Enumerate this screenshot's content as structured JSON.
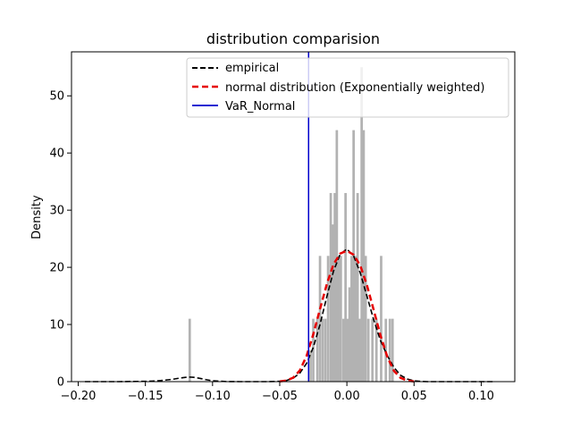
{
  "chart_data": {
    "type": "bar",
    "title": "distribution comparision",
    "xlabel": "",
    "ylabel": "Density",
    "xlim": [
      -0.205,
      0.125
    ],
    "ylim": [
      0,
      57.7
    ],
    "xticks": [
      -0.2,
      -0.15,
      -0.1,
      -0.05,
      0.0,
      0.05,
      0.1
    ],
    "xtick_labels": [
      "−0.20",
      "−0.15",
      "−0.10",
      "−0.05",
      "0.00",
      "0.05",
      "0.10"
    ],
    "yticks": [
      0,
      10,
      20,
      30,
      40,
      50
    ],
    "ytick_labels": [
      "0",
      "10",
      "20",
      "30",
      "40",
      "50"
    ],
    "grid": false,
    "legend_position": "top-right",
    "histogram": {
      "color": "#b2b2b2",
      "bin_width": 0.0018,
      "bins": [
        {
          "x": -0.117,
          "density": 11.0
        },
        {
          "x": -0.027,
          "density": 5.5
        },
        {
          "x": -0.025,
          "density": 11.0
        },
        {
          "x": -0.022,
          "density": 11.0
        },
        {
          "x": -0.02,
          "density": 22.0
        },
        {
          "x": -0.018,
          "density": 11.0
        },
        {
          "x": -0.016,
          "density": 11.0
        },
        {
          "x": -0.014,
          "density": 22.0
        },
        {
          "x": -0.012,
          "density": 33.0
        },
        {
          "x": -0.0105,
          "density": 27.5
        },
        {
          "x": -0.009,
          "density": 33.0
        },
        {
          "x": -0.0075,
          "density": 44.0
        },
        {
          "x": -0.006,
          "density": 22.0
        },
        {
          "x": -0.0045,
          "density": 22.0
        },
        {
          "x": -0.0025,
          "density": 11.0
        },
        {
          "x": -0.001,
          "density": 33.0
        },
        {
          "x": 0.0005,
          "density": 11.0
        },
        {
          "x": 0.002,
          "density": 16.5
        },
        {
          "x": 0.0035,
          "density": 22.0
        },
        {
          "x": 0.005,
          "density": 44.0
        },
        {
          "x": 0.0065,
          "density": 22.0
        },
        {
          "x": 0.008,
          "density": 33.0
        },
        {
          "x": 0.0095,
          "density": 11.0
        },
        {
          "x": 0.011,
          "density": 55.0
        },
        {
          "x": 0.0125,
          "density": 44.0
        },
        {
          "x": 0.014,
          "density": 22.0
        },
        {
          "x": 0.016,
          "density": 11.0
        },
        {
          "x": 0.019,
          "density": 11.0
        },
        {
          "x": 0.022,
          "density": 11.0
        },
        {
          "x": 0.0255,
          "density": 22.0
        },
        {
          "x": 0.029,
          "density": 11.0
        },
        {
          "x": 0.032,
          "density": 11.0
        },
        {
          "x": 0.034,
          "density": 11.0
        }
      ]
    },
    "series": [
      {
        "name": "empirical",
        "type": "line",
        "style": "dashed",
        "color": "#000000",
        "x": [
          -0.195,
          -0.17,
          -0.15,
          -0.14,
          -0.13,
          -0.125,
          -0.12,
          -0.117,
          -0.114,
          -0.11,
          -0.105,
          -0.1,
          -0.09,
          -0.08,
          -0.07,
          -0.06,
          -0.05,
          -0.045,
          -0.04,
          -0.035,
          -0.03,
          -0.025,
          -0.02,
          -0.015,
          -0.01,
          -0.005,
          0.0,
          0.005,
          0.01,
          0.015,
          0.02,
          0.025,
          0.03,
          0.035,
          0.04,
          0.045,
          0.05,
          0.055,
          0.06,
          0.07,
          0.08,
          0.09,
          0.1,
          0.11
        ],
        "y": [
          0,
          0,
          0.05,
          0.15,
          0.4,
          0.6,
          0.75,
          0.8,
          0.75,
          0.6,
          0.35,
          0.15,
          0.02,
          0,
          0,
          0,
          0.05,
          0.2,
          0.6,
          1.5,
          3.2,
          6.0,
          10.0,
          14.8,
          19.3,
          22.3,
          23.2,
          22.0,
          19.0,
          14.9,
          10.8,
          7.2,
          4.6,
          2.5,
          1.1,
          0.45,
          0.15,
          0.04,
          0,
          0,
          0,
          0,
          0,
          0
        ]
      },
      {
        "name": "normal distribution (Exponentially weighted)",
        "type": "line",
        "style": "dashed",
        "color": "#e60000",
        "x": [
          -0.05,
          -0.045,
          -0.04,
          -0.035,
          -0.03,
          -0.025,
          -0.02,
          -0.015,
          -0.01,
          -0.005,
          0.0,
          0.005,
          0.01,
          0.015,
          0.02,
          0.025,
          0.03,
          0.035,
          0.04,
          0.045,
          0.05
        ],
        "y": [
          0.04,
          0.19,
          0.68,
          1.96,
          4.5,
          8.3,
          12.7,
          17.0,
          20.5,
          22.4,
          22.9,
          22.2,
          20.3,
          16.8,
          12.5,
          8.1,
          4.4,
          1.9,
          0.65,
          0.18,
          0.04
        ]
      },
      {
        "name": "VaR_Normal",
        "type": "vline",
        "style": "solid",
        "color": "#0000cc",
        "x": -0.0285
      }
    ]
  }
}
